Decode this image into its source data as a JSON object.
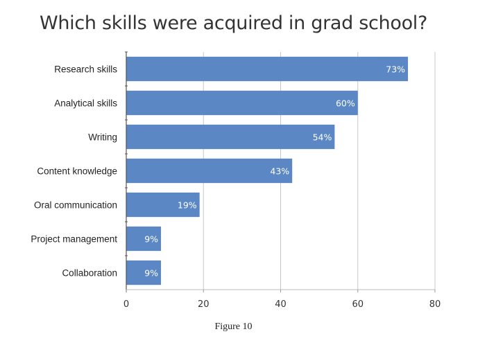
{
  "chart_data": {
    "type": "bar",
    "orientation": "horizontal",
    "title": "Which skills were acquired in grad school?",
    "categories": [
      "Research skills",
      "Analytical skills",
      "Writing",
      "Content knowledge",
      "Oral communication",
      "Project management",
      "Collaboration"
    ],
    "values": [
      73,
      60,
      54,
      43,
      19,
      9,
      9
    ],
    "data_labels": [
      "73%",
      "60%",
      "54%",
      "43%",
      "19%",
      "9%",
      "9%"
    ],
    "xticks": [
      0,
      20,
      40,
      60,
      80
    ],
    "xlim": [
      0,
      80
    ],
    "xlabel": "",
    "ylabel": "",
    "grid": "vertical",
    "legend": "none",
    "bar_color": "#5b87c5"
  },
  "caption": "Figure 10"
}
